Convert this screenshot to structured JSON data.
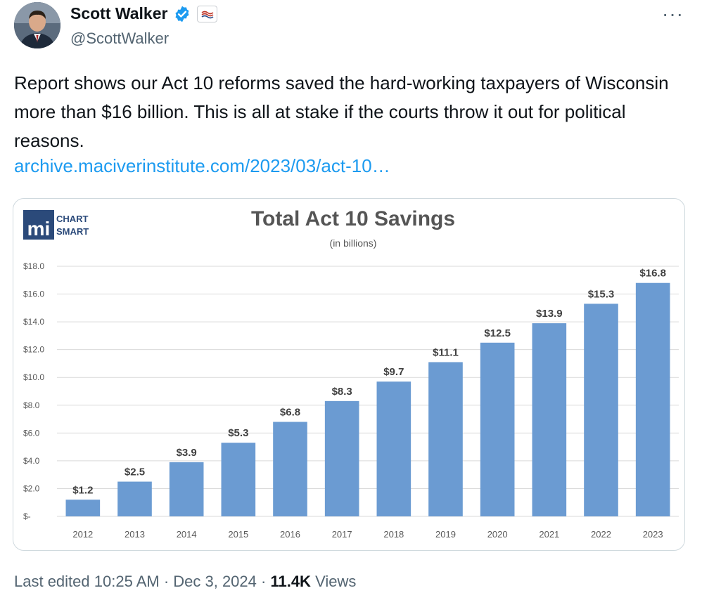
{
  "author": {
    "display_name": "Scott Walker",
    "handle": "@ScottWalker",
    "verified_icon": "verified-badge-icon",
    "affiliation_icon": "flag-icon"
  },
  "tweet": {
    "text": "Report shows our Act 10 reforms saved the hard-working taxpayers of Wisconsin more than $16 billion. This is all at stake if the courts throw it out for political reasons.",
    "link": "archive.maciverinstitute.com/2023/03/act-10…"
  },
  "media": {
    "logo": {
      "mark": "mi",
      "line1": "CHART",
      "line2": "SMART"
    }
  },
  "chart_data": {
    "type": "bar",
    "title": "Total Act 10 Savings",
    "subtitle": "(in billions)",
    "categories": [
      "2012",
      "2013",
      "2014",
      "2015",
      "2016",
      "2017",
      "2018",
      "2019",
      "2020",
      "2021",
      "2022",
      "2023"
    ],
    "values": [
      1.2,
      2.5,
      3.9,
      5.3,
      6.8,
      8.3,
      9.7,
      11.1,
      12.5,
      13.9,
      15.3,
      16.8
    ],
    "data_labels": [
      "$1.2",
      "$2.5",
      "$3.9",
      "$5.3",
      "$6.8",
      "$8.3",
      "$9.7",
      "$11.1",
      "$12.5",
      "$13.9",
      "$15.3",
      "$16.8"
    ],
    "y_ticks": [
      0,
      2,
      4,
      6,
      8,
      10,
      12,
      14,
      16,
      18
    ],
    "y_tick_labels": [
      "$-",
      "$2.0",
      "$4.0",
      "$6.0",
      "$8.0",
      "$10.0",
      "$12.0",
      "$14.0",
      "$16.0",
      "$18.0"
    ],
    "ylim": [
      0,
      18
    ],
    "xlabel": "",
    "ylabel": "",
    "grid": true,
    "bar_color": "#6b9bd2"
  },
  "footer": {
    "edited": "Last edited 10:25 AM · Dec 3, 2024 · ",
    "views_count": "11.4K",
    "views_label": " Views"
  },
  "colors": {
    "link": "#1d9bf0",
    "verified": "#1d9bf0",
    "muted": "#536471"
  }
}
